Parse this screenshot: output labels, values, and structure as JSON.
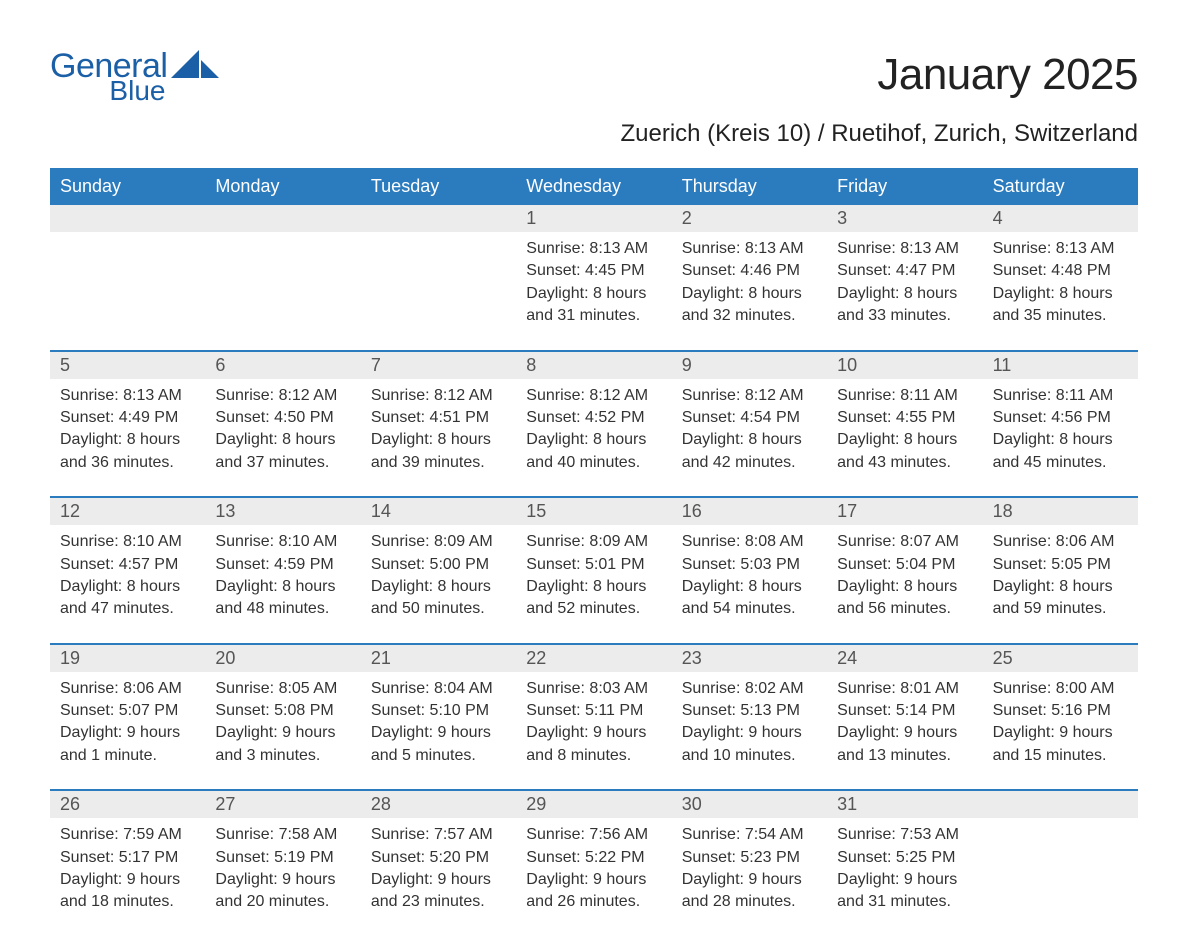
{
  "brand": {
    "name_part1": "General",
    "name_part2": "Blue",
    "color": "#1b5fa6"
  },
  "header": {
    "title": "January 2025",
    "location": "Zuerich (Kreis 10) / Ruetihof, Zurich, Switzerland"
  },
  "style": {
    "header_bg": "#2b7bbf",
    "header_text": "#ffffff",
    "daynum_bg": "#ececec",
    "week_border": "#2b7bbf",
    "body_text": "#333333",
    "month_title_fontsize": 44,
    "location_fontsize": 24,
    "weekday_fontsize": 18,
    "daynum_fontsize": 18,
    "info_fontsize": 16
  },
  "weekdays": [
    "Sunday",
    "Monday",
    "Tuesday",
    "Wednesday",
    "Thursday",
    "Friday",
    "Saturday"
  ],
  "weeks": [
    {
      "days": [
        null,
        null,
        null,
        {
          "num": "1",
          "sunrise": "Sunrise: 8:13 AM",
          "sunset": "Sunset: 4:45 PM",
          "daylight1": "Daylight: 8 hours",
          "daylight2": "and 31 minutes."
        },
        {
          "num": "2",
          "sunrise": "Sunrise: 8:13 AM",
          "sunset": "Sunset: 4:46 PM",
          "daylight1": "Daylight: 8 hours",
          "daylight2": "and 32 minutes."
        },
        {
          "num": "3",
          "sunrise": "Sunrise: 8:13 AM",
          "sunset": "Sunset: 4:47 PM",
          "daylight1": "Daylight: 8 hours",
          "daylight2": "and 33 minutes."
        },
        {
          "num": "4",
          "sunrise": "Sunrise: 8:13 AM",
          "sunset": "Sunset: 4:48 PM",
          "daylight1": "Daylight: 8 hours",
          "daylight2": "and 35 minutes."
        }
      ]
    },
    {
      "days": [
        {
          "num": "5",
          "sunrise": "Sunrise: 8:13 AM",
          "sunset": "Sunset: 4:49 PM",
          "daylight1": "Daylight: 8 hours",
          "daylight2": "and 36 minutes."
        },
        {
          "num": "6",
          "sunrise": "Sunrise: 8:12 AM",
          "sunset": "Sunset: 4:50 PM",
          "daylight1": "Daylight: 8 hours",
          "daylight2": "and 37 minutes."
        },
        {
          "num": "7",
          "sunrise": "Sunrise: 8:12 AM",
          "sunset": "Sunset: 4:51 PM",
          "daylight1": "Daylight: 8 hours",
          "daylight2": "and 39 minutes."
        },
        {
          "num": "8",
          "sunrise": "Sunrise: 8:12 AM",
          "sunset": "Sunset: 4:52 PM",
          "daylight1": "Daylight: 8 hours",
          "daylight2": "and 40 minutes."
        },
        {
          "num": "9",
          "sunrise": "Sunrise: 8:12 AM",
          "sunset": "Sunset: 4:54 PM",
          "daylight1": "Daylight: 8 hours",
          "daylight2": "and 42 minutes."
        },
        {
          "num": "10",
          "sunrise": "Sunrise: 8:11 AM",
          "sunset": "Sunset: 4:55 PM",
          "daylight1": "Daylight: 8 hours",
          "daylight2": "and 43 minutes."
        },
        {
          "num": "11",
          "sunrise": "Sunrise: 8:11 AM",
          "sunset": "Sunset: 4:56 PM",
          "daylight1": "Daylight: 8 hours",
          "daylight2": "and 45 minutes."
        }
      ]
    },
    {
      "days": [
        {
          "num": "12",
          "sunrise": "Sunrise: 8:10 AM",
          "sunset": "Sunset: 4:57 PM",
          "daylight1": "Daylight: 8 hours",
          "daylight2": "and 47 minutes."
        },
        {
          "num": "13",
          "sunrise": "Sunrise: 8:10 AM",
          "sunset": "Sunset: 4:59 PM",
          "daylight1": "Daylight: 8 hours",
          "daylight2": "and 48 minutes."
        },
        {
          "num": "14",
          "sunrise": "Sunrise: 8:09 AM",
          "sunset": "Sunset: 5:00 PM",
          "daylight1": "Daylight: 8 hours",
          "daylight2": "and 50 minutes."
        },
        {
          "num": "15",
          "sunrise": "Sunrise: 8:09 AM",
          "sunset": "Sunset: 5:01 PM",
          "daylight1": "Daylight: 8 hours",
          "daylight2": "and 52 minutes."
        },
        {
          "num": "16",
          "sunrise": "Sunrise: 8:08 AM",
          "sunset": "Sunset: 5:03 PM",
          "daylight1": "Daylight: 8 hours",
          "daylight2": "and 54 minutes."
        },
        {
          "num": "17",
          "sunrise": "Sunrise: 8:07 AM",
          "sunset": "Sunset: 5:04 PM",
          "daylight1": "Daylight: 8 hours",
          "daylight2": "and 56 minutes."
        },
        {
          "num": "18",
          "sunrise": "Sunrise: 8:06 AM",
          "sunset": "Sunset: 5:05 PM",
          "daylight1": "Daylight: 8 hours",
          "daylight2": "and 59 minutes."
        }
      ]
    },
    {
      "days": [
        {
          "num": "19",
          "sunrise": "Sunrise: 8:06 AM",
          "sunset": "Sunset: 5:07 PM",
          "daylight1": "Daylight: 9 hours",
          "daylight2": "and 1 minute."
        },
        {
          "num": "20",
          "sunrise": "Sunrise: 8:05 AM",
          "sunset": "Sunset: 5:08 PM",
          "daylight1": "Daylight: 9 hours",
          "daylight2": "and 3 minutes."
        },
        {
          "num": "21",
          "sunrise": "Sunrise: 8:04 AM",
          "sunset": "Sunset: 5:10 PM",
          "daylight1": "Daylight: 9 hours",
          "daylight2": "and 5 minutes."
        },
        {
          "num": "22",
          "sunrise": "Sunrise: 8:03 AM",
          "sunset": "Sunset: 5:11 PM",
          "daylight1": "Daylight: 9 hours",
          "daylight2": "and 8 minutes."
        },
        {
          "num": "23",
          "sunrise": "Sunrise: 8:02 AM",
          "sunset": "Sunset: 5:13 PM",
          "daylight1": "Daylight: 9 hours",
          "daylight2": "and 10 minutes."
        },
        {
          "num": "24",
          "sunrise": "Sunrise: 8:01 AM",
          "sunset": "Sunset: 5:14 PM",
          "daylight1": "Daylight: 9 hours",
          "daylight2": "and 13 minutes."
        },
        {
          "num": "25",
          "sunrise": "Sunrise: 8:00 AM",
          "sunset": "Sunset: 5:16 PM",
          "daylight1": "Daylight: 9 hours",
          "daylight2": "and 15 minutes."
        }
      ]
    },
    {
      "days": [
        {
          "num": "26",
          "sunrise": "Sunrise: 7:59 AM",
          "sunset": "Sunset: 5:17 PM",
          "daylight1": "Daylight: 9 hours",
          "daylight2": "and 18 minutes."
        },
        {
          "num": "27",
          "sunrise": "Sunrise: 7:58 AM",
          "sunset": "Sunset: 5:19 PM",
          "daylight1": "Daylight: 9 hours",
          "daylight2": "and 20 minutes."
        },
        {
          "num": "28",
          "sunrise": "Sunrise: 7:57 AM",
          "sunset": "Sunset: 5:20 PM",
          "daylight1": "Daylight: 9 hours",
          "daylight2": "and 23 minutes."
        },
        {
          "num": "29",
          "sunrise": "Sunrise: 7:56 AM",
          "sunset": "Sunset: 5:22 PM",
          "daylight1": "Daylight: 9 hours",
          "daylight2": "and 26 minutes."
        },
        {
          "num": "30",
          "sunrise": "Sunrise: 7:54 AM",
          "sunset": "Sunset: 5:23 PM",
          "daylight1": "Daylight: 9 hours",
          "daylight2": "and 28 minutes."
        },
        {
          "num": "31",
          "sunrise": "Sunrise: 7:53 AM",
          "sunset": "Sunset: 5:25 PM",
          "daylight1": "Daylight: 9 hours",
          "daylight2": "and 31 minutes."
        },
        null
      ]
    }
  ]
}
